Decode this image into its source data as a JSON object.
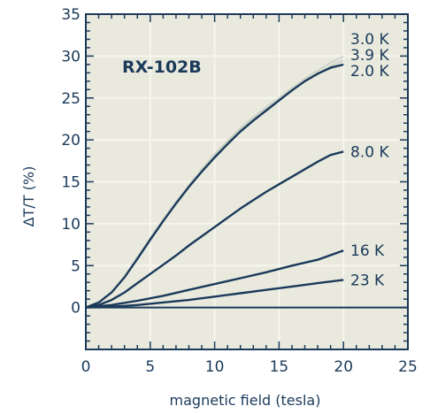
{
  "chart_data": {
    "type": "line",
    "title": "RX-102B",
    "xlabel": "magnetic field (tesla)",
    "ylabel": "ΔT/T (%)",
    "xlim": [
      0,
      25
    ],
    "ylim": [
      -5,
      35
    ],
    "xticks": [
      0,
      5,
      10,
      15,
      20,
      25
    ],
    "yticks": [
      0,
      5,
      10,
      15,
      20,
      25,
      30,
      35
    ],
    "grid": true,
    "colors": {
      "background": "#e9e9de",
      "grid": "#f6f6ee",
      "axis": "#1a3a5a",
      "line": "#1a3a5a",
      "faint_line": "#c9cfc6"
    },
    "series": [
      {
        "name": "3.0 K",
        "x": [
          0,
          1,
          2,
          3,
          4,
          5,
          6,
          7,
          8,
          9,
          10,
          11,
          12,
          13,
          14,
          15,
          16,
          17,
          18,
          19,
          20
        ],
        "y": [
          0,
          0.6,
          1.8,
          3.7,
          6.0,
          8.3,
          10.5,
          12.6,
          14.6,
          16.5,
          18.3,
          19.9,
          21.4,
          22.7,
          23.9,
          25.0,
          26.2,
          27.3,
          28.3,
          29.2,
          30.0
        ]
      },
      {
        "name": "3.9 K",
        "x": [
          0,
          1,
          2,
          3,
          4,
          5,
          6,
          7,
          8,
          9,
          10,
          11,
          12,
          13,
          14,
          15,
          16,
          17,
          18,
          19,
          20
        ],
        "y": [
          0,
          0.6,
          1.8,
          3.7,
          6.0,
          8.2,
          10.4,
          12.5,
          14.5,
          16.4,
          18.1,
          19.7,
          21.2,
          22.5,
          23.7,
          24.9,
          26.0,
          27.0,
          28.0,
          28.8,
          29.5
        ]
      },
      {
        "name": "2.0 K",
        "x": [
          0,
          1,
          2,
          3,
          4,
          5,
          6,
          7,
          8,
          9,
          10,
          11,
          12,
          13,
          14,
          15,
          16,
          17,
          18,
          19,
          20
        ],
        "y": [
          0,
          0.6,
          1.8,
          3.6,
          5.8,
          8.1,
          10.3,
          12.4,
          14.4,
          16.2,
          17.9,
          19.5,
          21.0,
          22.3,
          23.5,
          24.7,
          25.9,
          27.0,
          27.9,
          28.6,
          29.0
        ]
      },
      {
        "name": "8.0 K",
        "x": [
          0,
          1,
          2,
          3,
          4,
          5,
          6,
          7,
          8,
          9,
          10,
          11,
          12,
          13,
          14,
          15,
          16,
          17,
          18,
          19,
          20
        ],
        "y": [
          0,
          0.3,
          0.9,
          1.8,
          2.9,
          4.0,
          5.1,
          6.2,
          7.4,
          8.5,
          9.6,
          10.7,
          11.8,
          12.8,
          13.8,
          14.7,
          15.6,
          16.5,
          17.4,
          18.2,
          18.6
        ]
      },
      {
        "name": "16 K",
        "x": [
          0,
          2,
          4,
          6,
          8,
          10,
          12,
          14,
          16,
          18,
          20
        ],
        "y": [
          0,
          0.3,
          0.8,
          1.4,
          2.1,
          2.8,
          3.5,
          4.2,
          5.0,
          5.7,
          6.8
        ]
      },
      {
        "name": "23 K",
        "x": [
          0,
          2,
          4,
          6,
          8,
          10,
          12,
          14,
          16,
          18,
          20
        ],
        "y": [
          0,
          0.1,
          0.3,
          0.6,
          0.9,
          1.3,
          1.7,
          2.1,
          2.5,
          2.9,
          3.3
        ]
      }
    ]
  }
}
